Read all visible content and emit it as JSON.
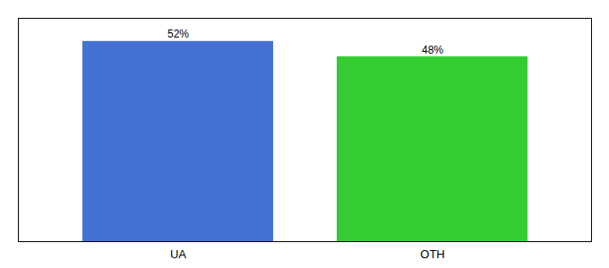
{
  "chart_data": {
    "type": "bar",
    "categories": [
      "UA",
      "OTH"
    ],
    "values": [
      52,
      48
    ],
    "value_labels": [
      "52%",
      "48%"
    ],
    "colors": [
      "#4472d3",
      "#33cc33"
    ],
    "ylim": [
      0,
      58
    ],
    "data_labels": true,
    "tick_labels": "x"
  }
}
